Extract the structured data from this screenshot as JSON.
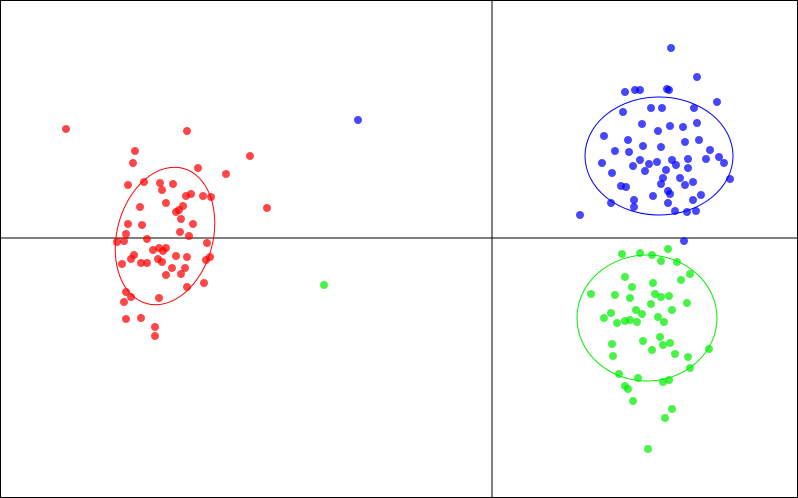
{
  "chart_data": {
    "type": "scatter",
    "xlim": [
      -492,
      306
    ],
    "ylim": [
      -260,
      238
    ],
    "opacity": 0.72,
    "series": [
      {
        "color": "#ff0000",
        "x": [
          -426,
          -305,
          -357,
          -242,
          -359,
          -294,
          -266,
          -364,
          -348,
          -332,
          -330,
          -319,
          -306,
          -301,
          -309,
          -289,
          -281,
          -225,
          -352,
          -326,
          -316,
          -311,
          -312,
          -299,
          -313,
          -364,
          -366,
          -350,
          -303,
          -375,
          -368,
          -345,
          -339,
          -333,
          -329,
          -326,
          -358,
          -351,
          -345,
          -334,
          -330,
          -316,
          -320,
          -285,
          -282,
          -286,
          -305,
          -361,
          -307,
          -326,
          -311,
          -288,
          -305,
          -366,
          -361,
          -333,
          -368,
          -366,
          -351,
          -337,
          -337,
          -370
        ],
        "y": [
          109,
          107,
          87,
          82,
          75,
          70,
          64,
          53,
          56,
          55,
          48,
          54,
          42,
          44,
          32,
          42,
          41,
          30,
          31,
          35,
          26,
          19,
          6,
          14,
          28,
          14,
          4,
          13,
          2,
          -4,
          -3,
          -1,
          -12,
          -10,
          -13,
          -10,
          -17,
          -25,
          -25,
          -21,
          -24,
          -18,
          -30,
          -5,
          -19,
          -22,
          -19,
          -21,
          -30,
          -37,
          -36,
          -45,
          -49,
          -54,
          -59,
          -60,
          -64,
          -81,
          -80,
          -89,
          -98,
          -26
        ],
        "ellipse": {
          "center": [
            -327,
            2
          ],
          "radii": [
            48,
            70
          ],
          "angle": 15
        }
      },
      {
        "color": "#0000ff",
        "x": [
          179,
          205,
          133,
          143,
          148,
          175,
          177,
          225,
          131,
          159,
          170,
          202,
          150,
          178,
          205,
          191,
          166,
          112,
          136,
          151,
          123,
          137,
          169,
          193,
          207,
          218,
          227,
          232,
          110,
          148,
          157,
          165,
          180,
          196,
          141,
          153,
          174,
          184,
          196,
          214,
          120,
          171,
          188,
          193,
          201,
          129,
          134,
          169,
          176,
          238,
          209,
          119,
          142,
          161,
          178,
          176,
          201,
          204,
          195,
          183,
          142,
          88,
          192,
          -134
        ],
        "y": [
          190,
          161,
          146,
          148,
          148,
          149,
          148,
          136,
          126,
          130,
          130,
          130,
          114,
          112,
          115,
          111,
          107,
          102,
          98,
          92,
          87,
          86,
          91,
          96,
          98,
          88,
          81,
          75,
          75,
          78,
          74,
          76,
          78,
          79,
          72,
          67,
          68,
          73,
          70,
          79,
          65,
          60,
          60,
          53,
          56,
          52,
          51,
          54,
          47,
          59,
          43,
          35,
          38,
          42,
          44,
          35,
          38,
          27,
          26,
          27,
          31,
          23,
          -3,
          118
        ],
        "ellipse": {
          "center": [
            167,
            82
          ],
          "radii": [
            74,
            59
          ],
          "angle": 0
        }
      },
      {
        "color": "#00ee00",
        "x": [
          176,
          160,
          148,
          130,
          169,
          185,
          198,
          133,
          189,
          140,
          161,
          99,
          123,
          138,
          169,
          177,
          159,
          144,
          119,
          112,
          125,
          133,
          138,
          145,
          166,
          172,
          180,
          195,
          120,
          151,
          160,
          168,
          171,
          178,
          196,
          217,
          183,
          121,
          127,
          133,
          146,
          171,
          177,
          198,
          136,
          141,
          180,
          173,
          156,
          -168,
          163,
          150
        ],
        "y": [
          -11,
          -17,
          -15,
          -16,
          -23,
          -24,
          -36,
          -39,
          -42,
          -49,
          -45,
          -56,
          -57,
          -60,
          -59,
          -58,
          -66,
          -72,
          -75,
          -80,
          -85,
          -83,
          -82,
          -84,
          -79,
          -84,
          -72,
          -65,
          -106,
          -103,
          -112,
          -99,
          -107,
          -105,
          -119,
          -111,
          -116,
          -118,
          -136,
          -148,
          -140,
          -144,
          -142,
          -130,
          -151,
          -163,
          -171,
          -180,
          -211,
          -47,
          -56,
          -76
        ],
        "ellipse": {
          "center": [
            155,
            -80
          ],
          "radii": [
            70,
            63
          ],
          "angle": 0
        }
      }
    ]
  }
}
